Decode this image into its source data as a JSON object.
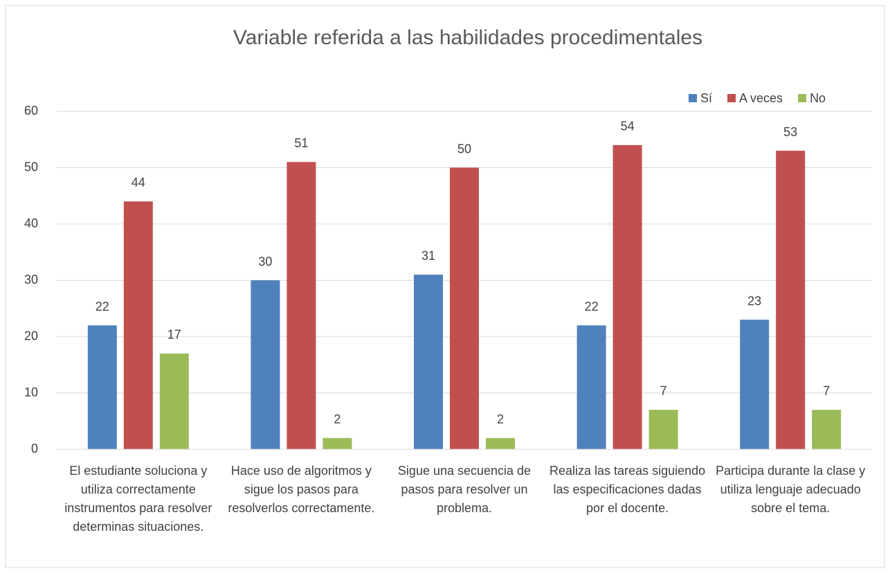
{
  "chart_data": {
    "type": "bar",
    "title": "Variable referida a las habilidades procedimentales",
    "categories": [
      "El estudiante soluciona y utiliza correctamente instrumentos para resolver determinas situaciones.",
      "Hace uso de algoritmos y sigue los pasos para resolverlos correctamente.",
      "Sigue una secuencia de pasos para resolver un problema.",
      "Realiza las tareas siguiendo las especificaciones dadas por el docente.",
      "Participa durante la clase y utiliza lenguaje adecuado sobre el tema."
    ],
    "series": [
      {
        "name": "Sí",
        "color": "#4f81bd",
        "values": [
          22,
          30,
          31,
          22,
          23
        ]
      },
      {
        "name": "A veces",
        "color": "#c0504d",
        "values": [
          44,
          51,
          50,
          54,
          53
        ]
      },
      {
        "name": "No",
        "color": "#9bbb59",
        "values": [
          17,
          2,
          2,
          7,
          7
        ]
      }
    ],
    "ylim": [
      0,
      60
    ],
    "yticks": [
      0,
      10,
      20,
      30,
      40,
      50,
      60
    ],
    "grid": true,
    "legend": "top-right"
  }
}
